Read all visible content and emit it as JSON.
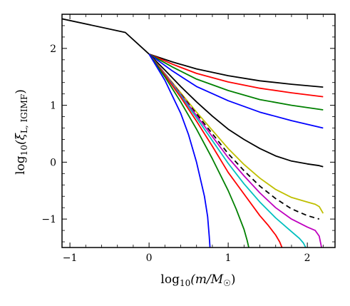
{
  "chart_data": {
    "type": "line",
    "title": "",
    "xlabel": {
      "pre": "log",
      "sub": "10",
      "post": "(m/M",
      "post_sub": "☉",
      "close": ")"
    },
    "ylabel": {
      "pre": "log",
      "sub": "10",
      "post": "(ξ",
      "post_sub": "L, IGIMF",
      "close": ")"
    },
    "xlim": [
      -1.1,
      2.35
    ],
    "ylim": [
      -1.5,
      2.6
    ],
    "xticks": [
      -1,
      0,
      1,
      2
    ],
    "yticks": [
      -1,
      0,
      1,
      2
    ],
    "xtick_labels": [
      "−1",
      "0",
      "1",
      "2"
    ],
    "ytick_labels": [
      "−1",
      "0",
      "1",
      "2"
    ],
    "grid": false,
    "legend": "none",
    "series": [
      {
        "color": "#000000",
        "dash": false,
        "x": [
          -1.1,
          -0.3,
          0.0,
          0.3,
          0.6,
          1.0,
          1.4,
          1.8,
          2.2
        ],
        "y": [
          2.52,
          2.28,
          1.9,
          1.76,
          1.64,
          1.52,
          1.43,
          1.37,
          1.32
        ]
      },
      {
        "color": "#ff0000",
        "dash": false,
        "x": [
          0.0,
          0.3,
          0.6,
          1.0,
          1.4,
          1.8,
          2.2
        ],
        "y": [
          1.9,
          1.72,
          1.56,
          1.41,
          1.3,
          1.22,
          1.15
        ]
      },
      {
        "color": "#008000",
        "dash": false,
        "x": [
          0.0,
          0.3,
          0.6,
          1.0,
          1.4,
          1.8,
          2.2
        ],
        "y": [
          1.9,
          1.67,
          1.46,
          1.26,
          1.1,
          1.0,
          0.92
        ]
      },
      {
        "color": "#0000ff",
        "dash": false,
        "x": [
          0.0,
          0.3,
          0.6,
          1.0,
          1.4,
          1.8,
          2.2
        ],
        "y": [
          1.9,
          1.6,
          1.33,
          1.08,
          0.88,
          0.73,
          0.6
        ]
      },
      {
        "color": "#000000",
        "dash": false,
        "x": [
          0.0,
          0.2,
          0.4,
          0.6,
          0.8,
          1.0,
          1.2,
          1.4,
          1.6,
          1.8,
          2.0,
          2.15,
          2.2
        ],
        "y": [
          1.9,
          1.62,
          1.33,
          1.06,
          0.81,
          0.58,
          0.4,
          0.24,
          0.11,
          0.02,
          -0.03,
          -0.06,
          -0.08
        ]
      },
      {
        "color": "#bfbf00",
        "dash": false,
        "x": [
          0.0,
          0.2,
          0.4,
          0.6,
          0.8,
          1.0,
          1.2,
          1.4,
          1.6,
          1.8,
          2.0,
          2.1,
          2.15,
          2.2
        ],
        "y": [
          1.9,
          1.56,
          1.22,
          0.88,
          0.56,
          0.24,
          -0.04,
          -0.28,
          -0.48,
          -0.62,
          -0.7,
          -0.74,
          -0.78,
          -0.9
        ]
      },
      {
        "color": "#000000",
        "dash": true,
        "x": [
          0.0,
          0.2,
          0.4,
          0.6,
          0.8,
          1.0,
          1.2,
          1.4,
          1.6,
          1.8,
          2.0,
          2.15
        ],
        "y": [
          1.9,
          1.55,
          1.2,
          0.85,
          0.5,
          0.15,
          -0.15,
          -0.42,
          -0.64,
          -0.82,
          -0.94,
          -1.0
        ]
      },
      {
        "color": "#bf00bf",
        "dash": false,
        "x": [
          0.0,
          0.2,
          0.4,
          0.6,
          0.8,
          1.0,
          1.2,
          1.4,
          1.6,
          1.8,
          2.0,
          2.1,
          2.15,
          2.18
        ],
        "y": [
          1.9,
          1.55,
          1.19,
          0.82,
          0.45,
          0.08,
          -0.24,
          -0.54,
          -0.8,
          -1.0,
          -1.14,
          -1.2,
          -1.3,
          -1.5
        ]
      },
      {
        "color": "#00bfbf",
        "dash": false,
        "x": [
          0.0,
          0.2,
          0.4,
          0.6,
          0.8,
          1.0,
          1.2,
          1.4,
          1.6,
          1.8,
          1.9,
          1.95,
          1.98
        ],
        "y": [
          1.9,
          1.54,
          1.17,
          0.78,
          0.38,
          -0.02,
          -0.38,
          -0.7,
          -0.98,
          -1.22,
          -1.34,
          -1.42,
          -1.5
        ]
      },
      {
        "color": "#ff0000",
        "dash": false,
        "x": [
          0.0,
          0.2,
          0.4,
          0.6,
          0.8,
          1.0,
          1.2,
          1.4,
          1.5,
          1.6,
          1.65,
          1.68
        ],
        "y": [
          1.9,
          1.53,
          1.14,
          0.72,
          0.28,
          -0.18,
          -0.56,
          -0.94,
          -1.1,
          -1.28,
          -1.4,
          -1.5
        ]
      },
      {
        "color": "#008000",
        "dash": false,
        "x": [
          0.0,
          0.2,
          0.4,
          0.6,
          0.8,
          1.0,
          1.1,
          1.2,
          1.24,
          1.26
        ],
        "y": [
          1.9,
          1.5,
          1.06,
          0.58,
          0.06,
          -0.5,
          -0.82,
          -1.18,
          -1.38,
          -1.5
        ]
      },
      {
        "color": "#0000ff",
        "dash": false,
        "x": [
          0.0,
          0.2,
          0.4,
          0.5,
          0.6,
          0.7,
          0.74,
          0.76,
          0.77
        ],
        "y": [
          1.9,
          1.44,
          0.86,
          0.48,
          0.0,
          -0.6,
          -0.96,
          -1.3,
          -1.5
        ]
      }
    ]
  }
}
